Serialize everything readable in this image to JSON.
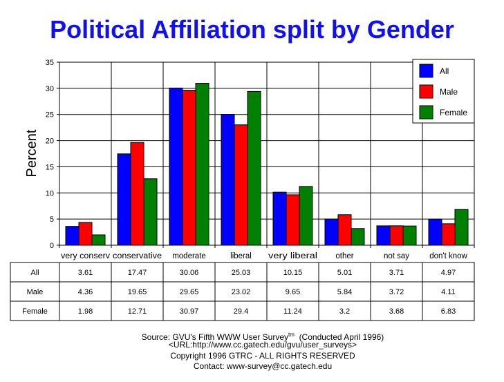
{
  "chart_data": {
    "type": "bar",
    "title": "Political Affiliation split by Gender",
    "ylabel": "Percent",
    "ylim": [
      0,
      35
    ],
    "yticks": [
      0,
      5,
      10,
      15,
      20,
      25,
      30,
      35
    ],
    "grid": true,
    "legend_position": "top-right",
    "categories": [
      "very conserv",
      "conservative",
      "moderate",
      "liberal",
      "very liberal",
      "other",
      "not say",
      "don't know"
    ],
    "series": [
      {
        "name": "All",
        "color": "#0000ff",
        "values": [
          3.61,
          17.47,
          30.06,
          25.03,
          10.15,
          5.01,
          3.71,
          4.97
        ]
      },
      {
        "name": "Male",
        "color": "#ff0000",
        "values": [
          4.36,
          19.65,
          29.65,
          23.02,
          9.65,
          5.84,
          3.72,
          4.11
        ]
      },
      {
        "name": "Female",
        "color": "#008000",
        "values": [
          1.98,
          12.71,
          30.97,
          29.4,
          11.24,
          3.2,
          3.68,
          6.83
        ]
      }
    ]
  },
  "footer": {
    "source": "Source: GVU's Fifth WWW User Survey",
    "tm": "tm",
    "conducted": "(Conducted April 1996)",
    "url": "<URL:http://www.cc.gatech.edu/gvu/user_surveys>",
    "copyright": "Copyright 1996 GTRC -  ALL RIGHTS RESERVED",
    "contact": "Contact: www-survey@cc.gatech.edu"
  }
}
